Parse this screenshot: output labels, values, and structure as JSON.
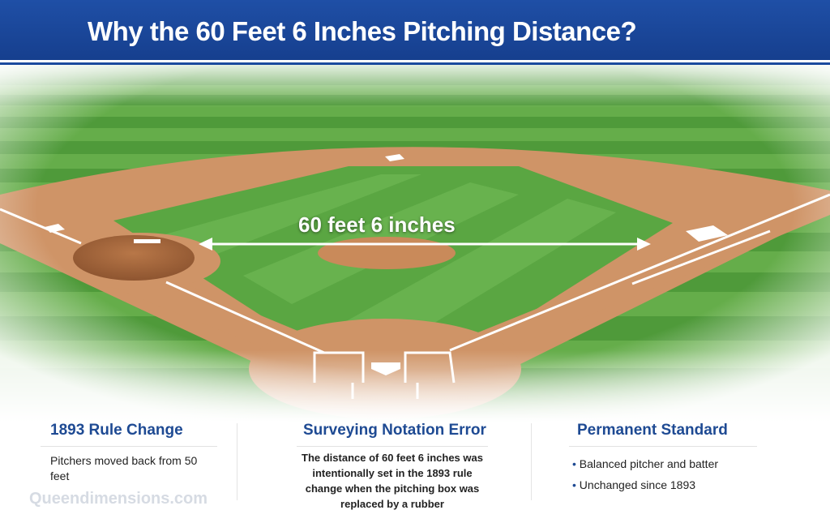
{
  "header": {
    "title": "Why the 60 Feet 6 Inches Pitching Distance?"
  },
  "diagram": {
    "distance_label": "60 feet 6 inches",
    "colors": {
      "header": "#1a4aa0",
      "grass": "#4f9a3a",
      "dirt": "#c98a5a",
      "heading": "#1e4a93"
    }
  },
  "panels": [
    {
      "title": "1893 Rule Change",
      "text": "Pitchers moved back from 50 feet"
    },
    {
      "title": "Surveying Notation Error",
      "text": "The distance of 60 feet 6 inches was intentionally set in the 1893 rule change when the pitching box was replaced by a rubber"
    },
    {
      "title": "Permanent Standard",
      "bullets": [
        "Balanced pitcher and batter",
        "Unchanged since 1893"
      ]
    }
  ],
  "watermark": "Queendimensions.com"
}
